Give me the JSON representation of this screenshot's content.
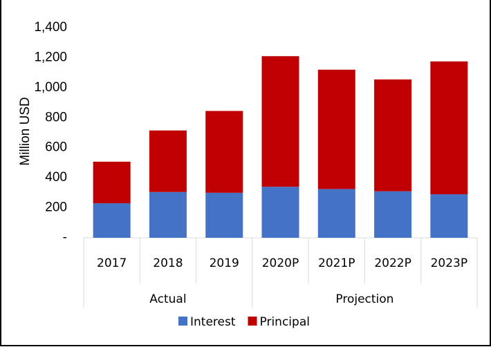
{
  "chart_data": {
    "type": "stacked_bar",
    "y_label": "Million USD",
    "categories": [
      "2017",
      "2018",
      "2019",
      "2020P",
      "2021P",
      "2022P",
      "2023P"
    ],
    "category_groups": [
      "Actual",
      "Actual",
      "Actual",
      "Projection",
      "Projection",
      "Projection",
      "Projection"
    ],
    "series": [
      {
        "name": "Interest",
        "color": "#4472c4",
        "values": [
          230,
          305,
          300,
          340,
          325,
          310,
          290
        ]
      },
      {
        "name": "Principal",
        "color": "#c00000",
        "values": [
          277,
          410,
          545,
          870,
          795,
          745,
          885
        ]
      }
    ],
    "ylim": [
      0,
      1400
    ],
    "yticks": [
      {
        "value": 0,
        "label": "-"
      },
      200,
      400,
      600,
      800,
      {
        "value": 1000,
        "label": "1,000"
      },
      {
        "value": 1200,
        "label": "1,200"
      },
      {
        "value": 1400,
        "label": "1,400"
      }
    ],
    "legend": "bottom"
  }
}
